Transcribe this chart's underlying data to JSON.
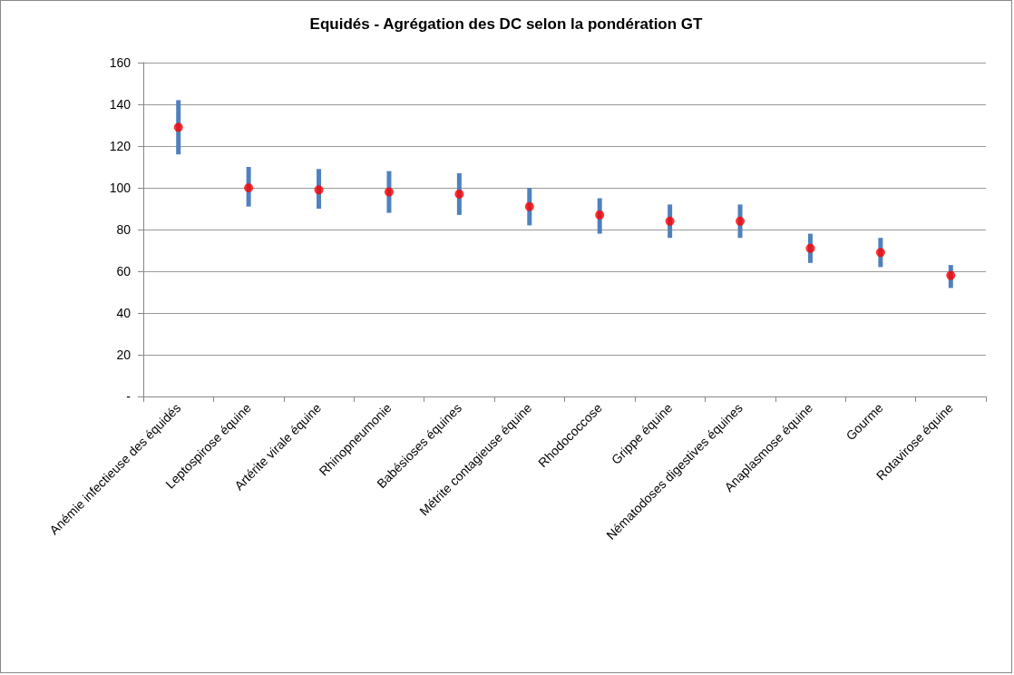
{
  "chart_data": {
    "type": "scatter",
    "title": "Equidés - Agrégation des DC selon la pondération GT",
    "categories": [
      "Anémie infectieuse des équidés",
      "Leptospirose équine",
      "Artérite virale équine",
      "Rhinopneumonie",
      "Babésioses équines",
      "Métrite contagieuse équine",
      "Rhodococcose",
      "Grippe équine",
      "Nématodoses digestives équines",
      "Anaplasmose équine",
      "Gourme",
      "Rotavirose équine"
    ],
    "series": [
      {
        "color": "#ff0000",
        "values": [
          129,
          100,
          99,
          98,
          97,
          91,
          87,
          84,
          84,
          71,
          69,
          58
        ],
        "errors": [
          [
            116,
            142
          ],
          [
            91,
            110
          ],
          [
            90,
            109
          ],
          [
            88,
            108
          ],
          [
            87,
            107
          ],
          [
            82,
            100
          ],
          [
            78,
            95
          ],
          [
            76,
            92
          ],
          [
            76,
            92
          ],
          [
            64,
            78
          ],
          [
            62,
            76
          ],
          [
            52,
            63
          ]
        ]
      }
    ],
    "ylim": [
      0,
      160
    ],
    "yticks": [
      {
        "value": 0,
        "label": "-"
      },
      20,
      40,
      60,
      80,
      100,
      120,
      140,
      160
    ],
    "grid": "y",
    "marker": "circle"
  }
}
